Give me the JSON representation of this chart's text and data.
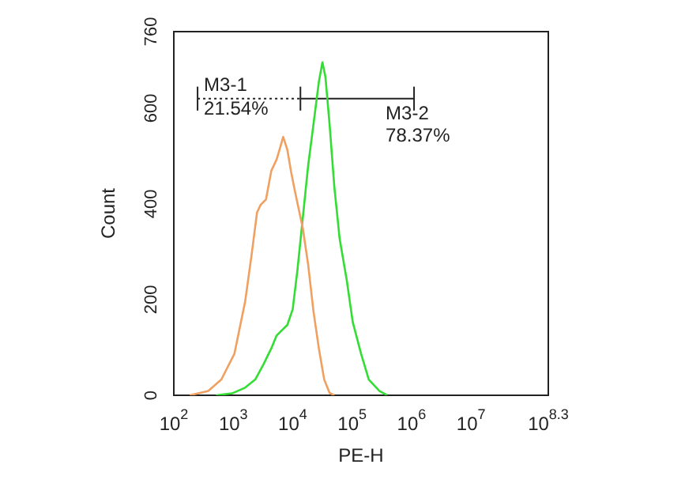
{
  "chart_data": {
    "type": "line",
    "xlabel": "PE-H",
    "ylabel": "Count",
    "log": "x",
    "grid": false,
    "legend": false,
    "marker": "none",
    "line_style": "solid",
    "xlim": [
      100,
      199526231
    ],
    "xticks": [
      {
        "value": 100,
        "label": "10$^{2}$"
      },
      {
        "value": 1000,
        "label": "10$^{3}$"
      },
      {
        "value": 10000,
        "label": "10$^{4}$"
      },
      {
        "value": 100000,
        "label": "10$^{5}$"
      },
      {
        "value": 1000000,
        "label": "10$^{6}$"
      },
      {
        "value": 10000000,
        "label": "10$^{7}$"
      },
      {
        "value": 199526231,
        "label": "10$^{8.3}$"
      }
    ],
    "ylim": [
      0,
      760
    ],
    "yticks": [
      0,
      200,
      400,
      600,
      760
    ],
    "series": [
      {
        "color": "#f0a060",
        "x": [
          186,
          380,
          631,
          1047,
          1585,
          2042,
          2512,
          2884,
          3548,
          4365,
          5370,
          6166,
          6918,
          8128,
          9333,
          10965,
          14791,
          18197,
          22387,
          27542,
          33884,
          41687,
          50119
        ],
        "values": [
          0,
          9,
          33,
          87,
          196,
          295,
          382,
          398,
          409,
          469,
          493,
          518,
          540,
          513,
          469,
          425,
          349,
          273,
          175,
          98,
          33,
          5,
          0
        ]
      },
      {
        "color": "#33dd33",
        "x": [
          513,
          955,
          1585,
          2344,
          3236,
          4365,
          5370,
          6607,
          8128,
          10000,
          12023,
          14791,
          18197,
          22387,
          27542,
          31623,
          35481,
          41687,
          50119,
          61660,
          81283,
          102329,
          141254,
          190546,
          288403,
          389045
        ],
        "values": [
          0,
          4,
          16,
          33,
          65,
          98,
          125,
          136,
          147,
          180,
          262,
          371,
          480,
          567,
          655,
          696,
          666,
          567,
          436,
          327,
          240,
          153,
          87,
          33,
          9,
          0
        ]
      },
      {
        "name": "M3-1",
        "color": "#222222",
        "line_style": "dotted",
        "x": [
          251,
          13490
        ],
        "values": [
          620,
          620
        ],
        "errors": [
          25,
          25
        ]
      },
      {
        "name": "M3-2",
        "color": "#222222",
        "x": [
          13490,
          1100000
        ],
        "values": [
          620,
          620
        ],
        "errors": [
          null,
          25
        ]
      }
    ],
    "annotations": [
      {
        "text": "21.54%",
        "x": 251,
        "y": 620
      },
      {
        "text": "78.37%",
        "x": 1100000,
        "y": 620
      }
    ]
  }
}
